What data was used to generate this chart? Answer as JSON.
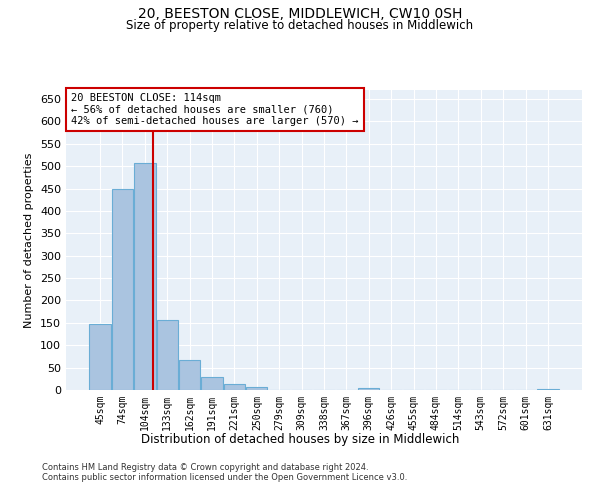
{
  "title1": "20, BEESTON CLOSE, MIDDLEWICH, CW10 0SH",
  "title2": "Size of property relative to detached houses in Middlewich",
  "xlabel": "Distribution of detached houses by size in Middlewich",
  "ylabel": "Number of detached properties",
  "categories": [
    "45sqm",
    "74sqm",
    "104sqm",
    "133sqm",
    "162sqm",
    "191sqm",
    "221sqm",
    "250sqm",
    "279sqm",
    "309sqm",
    "338sqm",
    "367sqm",
    "396sqm",
    "426sqm",
    "455sqm",
    "484sqm",
    "514sqm",
    "543sqm",
    "572sqm",
    "601sqm",
    "631sqm"
  ],
  "values": [
    148,
    450,
    508,
    157,
    66,
    30,
    13,
    7,
    0,
    0,
    0,
    0,
    5,
    0,
    0,
    0,
    0,
    0,
    0,
    0,
    3
  ],
  "bar_color": "#aac4e0",
  "bar_edge_color": "#6aadd5",
  "vline_color": "#cc0000",
  "annotation_text": "20 BEESTON CLOSE: 114sqm\n← 56% of detached houses are smaller (760)\n42% of semi-detached houses are larger (570) →",
  "annotation_box_color": "#ffffff",
  "annotation_box_edge": "#cc0000",
  "ylim": [
    0,
    670
  ],
  "yticks": [
    0,
    50,
    100,
    150,
    200,
    250,
    300,
    350,
    400,
    450,
    500,
    550,
    600,
    650
  ],
  "bg_color": "#e8f0f8",
  "grid_color": "#ffffff",
  "footer1": "Contains HM Land Registry data © Crown copyright and database right 2024.",
  "footer2": "Contains public sector information licensed under the Open Government Licence v3.0."
}
